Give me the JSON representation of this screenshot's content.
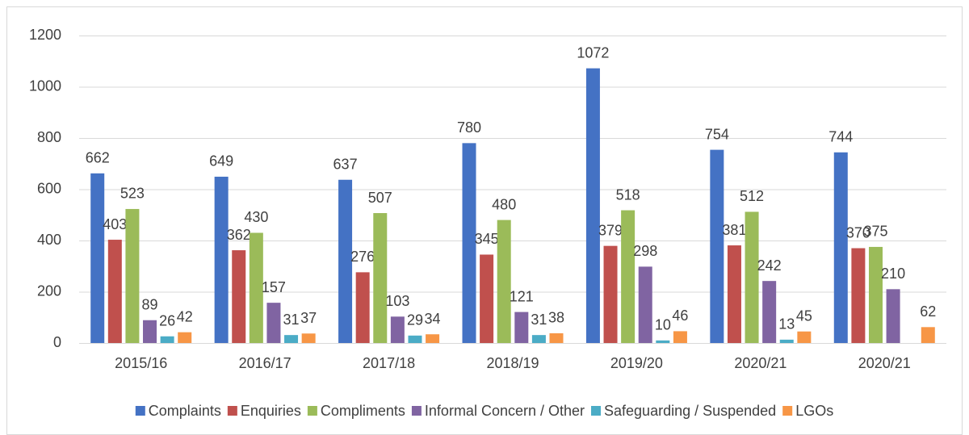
{
  "chart_data": {
    "type": "bar",
    "categories": [
      "2015/16",
      "2016/17",
      "2017/18",
      "2018/19",
      "2019/20",
      "2020/21",
      "2020/21"
    ],
    "series": [
      {
        "name": "Complaints",
        "color": "#4472c4",
        "values": [
          662,
          649,
          637,
          780,
          1072,
          754,
          744
        ]
      },
      {
        "name": "Enquiries",
        "color": "#c0504d",
        "values": [
          403,
          362,
          276,
          345,
          379,
          381,
          370
        ]
      },
      {
        "name": "Compliments",
        "color": "#9bbb59",
        "values": [
          523,
          430,
          507,
          480,
          518,
          512,
          375
        ]
      },
      {
        "name": "Informal Concern / Other",
        "color": "#8064a2",
        "values": [
          89,
          157,
          103,
          121,
          298,
          242,
          210
        ]
      },
      {
        "name": "Safeguarding / Suspended",
        "color": "#4bacc6",
        "values": [
          26,
          31,
          29,
          31,
          10,
          13,
          null
        ]
      },
      {
        "name": "LGOs",
        "color": "#f79646",
        "values": [
          42,
          37,
          34,
          38,
          46,
          45,
          62
        ]
      }
    ],
    "ylim": [
      0,
      1200
    ],
    "yticks": [
      0,
      200,
      400,
      600,
      800,
      1000,
      1200
    ],
    "grid": true,
    "legend": "bottom"
  }
}
